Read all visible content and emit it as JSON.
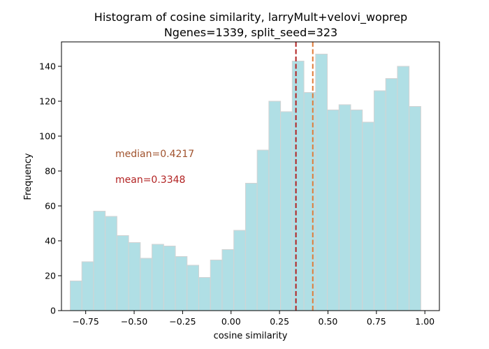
{
  "chart_data": {
    "type": "bar",
    "title": "Histogram of cosine similarity, larryMult+velovi_woprep",
    "subtitle": "Ngenes=1339, split_seed=323",
    "xlabel": "cosine similarity",
    "ylabel": "Frequency",
    "xlim": [
      -0.875,
      1.075
    ],
    "ylim": [
      0,
      154
    ],
    "x_ticks": [
      -0.75,
      -0.5,
      -0.25,
      0.0,
      0.25,
      0.5,
      0.75,
      1.0
    ],
    "x_tick_labels": [
      "−0.75",
      "−0.50",
      "−0.25",
      "0.00",
      "0.25",
      "0.50",
      "0.75",
      "1.00"
    ],
    "y_ticks": [
      0,
      20,
      40,
      60,
      80,
      100,
      120,
      140
    ],
    "y_tick_labels": [
      "0",
      "20",
      "40",
      "60",
      "80",
      "100",
      "120",
      "140"
    ],
    "bin_start": -0.83,
    "bin_width": 0.0603,
    "values": [
      17,
      28,
      57,
      54,
      43,
      39,
      30,
      38,
      37,
      31,
      26,
      19,
      29,
      35,
      46,
      73,
      92,
      120,
      114,
      143,
      125,
      147,
      115,
      118,
      115,
      108,
      126,
      133,
      140,
      117
    ],
    "bar_color": "#b0dfe5",
    "bar_edge_color": "#d3d3d3",
    "median": 0.4217,
    "mean": 0.3348,
    "median_color": "#e07b39",
    "mean_color": "#b22222",
    "median_text_color": "#a0522d",
    "mean_text_color": "#b22222",
    "median_label": "median=0.4217",
    "mean_label": "mean=0.3348",
    "grid": false
  }
}
